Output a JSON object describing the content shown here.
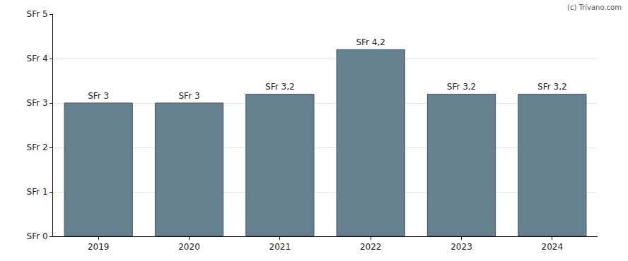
{
  "chart_data": {
    "type": "bar",
    "categories": [
      "2019",
      "2020",
      "2021",
      "2022",
      "2023",
      "2024"
    ],
    "values": [
      3,
      3,
      3.2,
      4.2,
      3.2,
      3.2
    ],
    "value_labels": [
      "SFr 3",
      "SFr 3",
      "SFr 3,2",
      "SFr 4,2",
      "SFr 3,2",
      "SFr 3,2"
    ],
    "data_labels": true,
    "color": "#65808f",
    "ylim": [
      0,
      5
    ],
    "yticks": [
      {
        "value": 0,
        "label": "SFr 0"
      },
      {
        "value": 1,
        "label": "SFr 1"
      },
      {
        "value": 2,
        "label": "SFr 2"
      },
      {
        "value": 3,
        "label": "SFr 3"
      },
      {
        "value": 4,
        "label": "SFr 4"
      },
      {
        "value": 5,
        "label": "SFr 5"
      }
    ],
    "grid": true,
    "annotations": [
      "(c) Trivano.com"
    ]
  }
}
